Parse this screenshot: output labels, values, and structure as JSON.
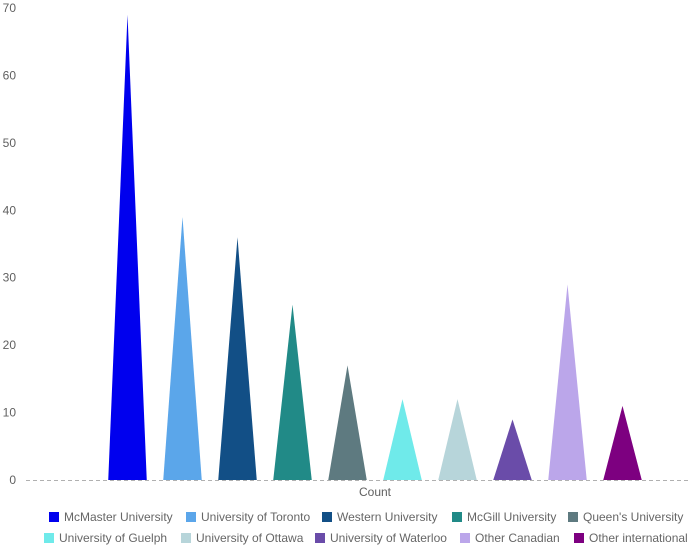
{
  "chart_data": {
    "type": "bar",
    "bar_shape": "triangle",
    "title": "",
    "xlabel": "Count",
    "ylabel": "",
    "ylim": [
      0,
      70
    ],
    "yticks": [
      0,
      10,
      20,
      30,
      40,
      50,
      60,
      70
    ],
    "grid": false,
    "legend_position": "bottom",
    "categories": [
      "Count"
    ],
    "series": [
      {
        "name": "McMaster University",
        "value": 69,
        "color": "#0000ee"
      },
      {
        "name": "University of Toronto",
        "value": 39,
        "color": "#5ba6ea"
      },
      {
        "name": "Western University",
        "value": 36,
        "color": "#124f86"
      },
      {
        "name": "McGill University",
        "value": 26,
        "color": "#218a87"
      },
      {
        "name": "Queen's University",
        "value": 17,
        "color": "#5e7a80"
      },
      {
        "name": "University of Guelph",
        "value": 12,
        "color": "#6feaea"
      },
      {
        "name": "University of Ottawa",
        "value": 12,
        "color": "#b7d5da"
      },
      {
        "name": "University of Waterloo",
        "value": 9,
        "color": "#6a4ca9"
      },
      {
        "name": "Other Canadian",
        "value": 29,
        "color": "#bba6ea"
      },
      {
        "name": "Other international",
        "value": 11,
        "color": "#7d0080"
      }
    ]
  }
}
